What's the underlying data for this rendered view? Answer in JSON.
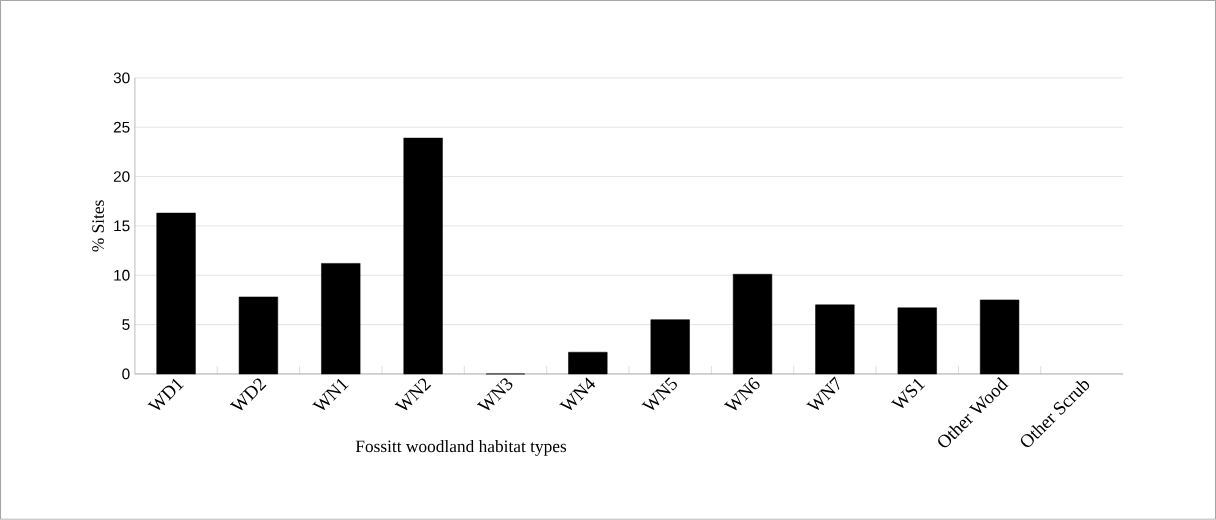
{
  "chart_data": {
    "type": "bar",
    "xlabel": "Fossitt woodland habitat types",
    "ylabel": "% Sites",
    "categories": [
      "WD1",
      "WD2",
      "WN1",
      "WN2",
      "WN3",
      "WN4",
      "WN5",
      "WN6",
      "WN7",
      "WS1",
      "Other Wood",
      "Other Scrub"
    ],
    "values": [
      16.3,
      7.8,
      11.2,
      23.9,
      0,
      2.2,
      5.5,
      10.1,
      7.0,
      6.7,
      7.5,
      null
    ],
    "color": "#000000",
    "ylim": [
      0,
      30
    ],
    "yticks": [
      0,
      5,
      10,
      15,
      20,
      25,
      30
    ],
    "grid": "y"
  }
}
